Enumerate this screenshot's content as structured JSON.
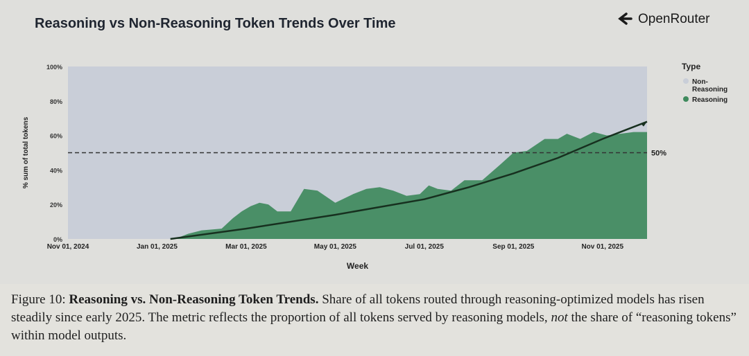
{
  "brand": {
    "name": "OpenRouter",
    "icon": "openrouter-logo-icon"
  },
  "chart_data": {
    "type": "area",
    "title": "Reasoning vs Non-Reasoning Token Trends Over Time",
    "xlabel": "Week",
    "ylabel": "% sum of total tokens",
    "ylim": [
      0,
      100
    ],
    "xlim": [
      0,
      13
    ],
    "y_ticks": [
      "0%",
      "20%",
      "40%",
      "60%",
      "80%",
      "100%"
    ],
    "x_ticks": [
      {
        "label": "Nov 01, 2024",
        "x": 0
      },
      {
        "label": "Jan 01, 2025",
        "x": 2
      },
      {
        "label": "Mar 01, 2025",
        "x": 4
      },
      {
        "label": "May 01, 2025",
        "x": 6
      },
      {
        "label": "Jul 01, 2025",
        "x": 8
      },
      {
        "label": "Sep 01, 2025",
        "x": 10
      },
      {
        "label": "Nov 01, 2025",
        "x": 12
      }
    ],
    "legend": {
      "title": "Type",
      "items": [
        {
          "label": "Non-Reasoning",
          "color": "#c9ced8"
        },
        {
          "label": "Reasoning",
          "color": "#3f8a5d"
        }
      ]
    },
    "reference_line": {
      "value": 50,
      "label": "50%"
    },
    "series": [
      {
        "name": "Reasoning",
        "x": [
          0,
          2.4,
          2.7,
          3.0,
          3.45,
          3.7,
          3.9,
          4.1,
          4.3,
          4.5,
          4.7,
          5.0,
          5.3,
          5.6,
          6.0,
          6.4,
          6.7,
          7.0,
          7.3,
          7.6,
          7.9,
          8.1,
          8.3,
          8.6,
          8.9,
          9.3,
          9.7,
          10.0,
          10.3,
          10.7,
          11.0,
          11.2,
          11.5,
          11.8,
          12.1,
          12.4,
          12.7,
          13.0
        ],
        "values": [
          0,
          0,
          3,
          5,
          6,
          12,
          16,
          19,
          21,
          20,
          16,
          16,
          29,
          28,
          21,
          26,
          29,
          30,
          28,
          25,
          26,
          31,
          29,
          28,
          34,
          34,
          43,
          50,
          51,
          58,
          58,
          61,
          58,
          62,
          60,
          61,
          62,
          62
        ]
      },
      {
        "name": "Trend",
        "x": [
          2.3,
          4,
          6,
          8,
          9,
          10,
          11,
          12,
          13
        ],
        "values": [
          0,
          6,
          14,
          23,
          30,
          38,
          47,
          58,
          68
        ]
      }
    ]
  },
  "caption": {
    "prefix": "Figure 10: ",
    "title": "Reasoning vs. Non-Reasoning Token Trends.",
    "text1": " Share of all tokens routed through reasoning-optimized models has risen steadily since early 2025. The metric reflects the proportion of all tokens served by reasoning models, ",
    "emph": "not",
    "text2": " the share of “reasoning tokens” within model outputs."
  }
}
